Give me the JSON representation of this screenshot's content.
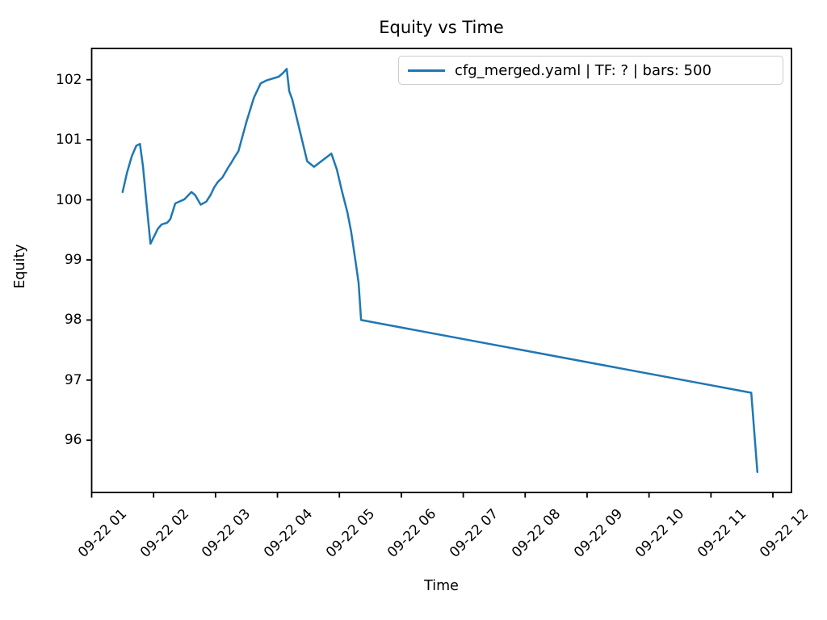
{
  "colors": {
    "line": "#1f77b4",
    "axis": "#000000",
    "legend_border": "#cccccc",
    "background": "#ffffff",
    "text": "#000000"
  },
  "chart_data": {
    "type": "line",
    "title": "Equity vs Time",
    "xlabel": "Time",
    "ylabel": "Equity",
    "grid": false,
    "legend_position": "upper right",
    "xlim_hours": [
      1.0,
      12.3
    ],
    "ylim": [
      95.13,
      102.52
    ],
    "x_ticks": [
      {
        "hour": 1,
        "label": "09-22 01"
      },
      {
        "hour": 2,
        "label": "09-22 02"
      },
      {
        "hour": 3,
        "label": "09-22 03"
      },
      {
        "hour": 4,
        "label": "09-22 04"
      },
      {
        "hour": 5,
        "label": "09-22 05"
      },
      {
        "hour": 6,
        "label": "09-22 06"
      },
      {
        "hour": 7,
        "label": "09-22 07"
      },
      {
        "hour": 8,
        "label": "09-22 08"
      },
      {
        "hour": 9,
        "label": "09-22 09"
      },
      {
        "hour": 10,
        "label": "09-22 10"
      },
      {
        "hour": 11,
        "label": "09-22 11"
      },
      {
        "hour": 12,
        "label": "09-22 12"
      }
    ],
    "y_ticks": [
      {
        "value": 96,
        "label": "96"
      },
      {
        "value": 97,
        "label": "97"
      },
      {
        "value": 98,
        "label": "98"
      },
      {
        "value": 99,
        "label": "99"
      },
      {
        "value": 100,
        "label": "100"
      },
      {
        "value": 101,
        "label": "101"
      },
      {
        "value": 102,
        "label": "102"
      }
    ],
    "series": [
      {
        "name": "cfg_merged.yaml | TF: ? | bars: 500",
        "color": "#1f77b4",
        "points": [
          [
            1.5,
            100.13
          ],
          [
            1.57,
            100.45
          ],
          [
            1.65,
            100.73
          ],
          [
            1.72,
            100.9
          ],
          [
            1.78,
            100.93
          ],
          [
            1.83,
            100.55
          ],
          [
            1.88,
            100.0
          ],
          [
            1.95,
            99.27
          ],
          [
            2.07,
            99.52
          ],
          [
            2.13,
            99.59
          ],
          [
            2.22,
            99.62
          ],
          [
            2.27,
            99.68
          ],
          [
            2.35,
            99.94
          ],
          [
            2.5,
            100.01
          ],
          [
            2.61,
            100.13
          ],
          [
            2.67,
            100.08
          ],
          [
            2.76,
            99.92
          ],
          [
            2.85,
            99.97
          ],
          [
            2.92,
            100.08
          ],
          [
            2.98,
            100.21
          ],
          [
            3.04,
            100.3
          ],
          [
            3.11,
            100.37
          ],
          [
            3.2,
            100.53
          ],
          [
            3.25,
            100.61
          ],
          [
            3.3,
            100.7
          ],
          [
            3.37,
            100.81
          ],
          [
            3.5,
            101.3
          ],
          [
            3.62,
            101.7
          ],
          [
            3.73,
            101.94
          ],
          [
            3.83,
            101.99
          ],
          [
            4.02,
            102.05
          ],
          [
            4.09,
            102.11
          ],
          [
            4.15,
            102.18
          ],
          [
            4.19,
            101.81
          ],
          [
            4.24,
            101.67
          ],
          [
            4.48,
            100.64
          ],
          [
            4.59,
            100.55
          ],
          [
            4.87,
            100.77
          ],
          [
            4.96,
            100.5
          ],
          [
            5.04,
            100.15
          ],
          [
            5.13,
            99.79
          ],
          [
            5.19,
            99.47
          ],
          [
            5.26,
            98.98
          ],
          [
            5.31,
            98.62
          ],
          [
            5.35,
            98.0
          ],
          [
            11.65,
            96.79
          ],
          [
            11.75,
            95.47
          ]
        ]
      }
    ]
  }
}
